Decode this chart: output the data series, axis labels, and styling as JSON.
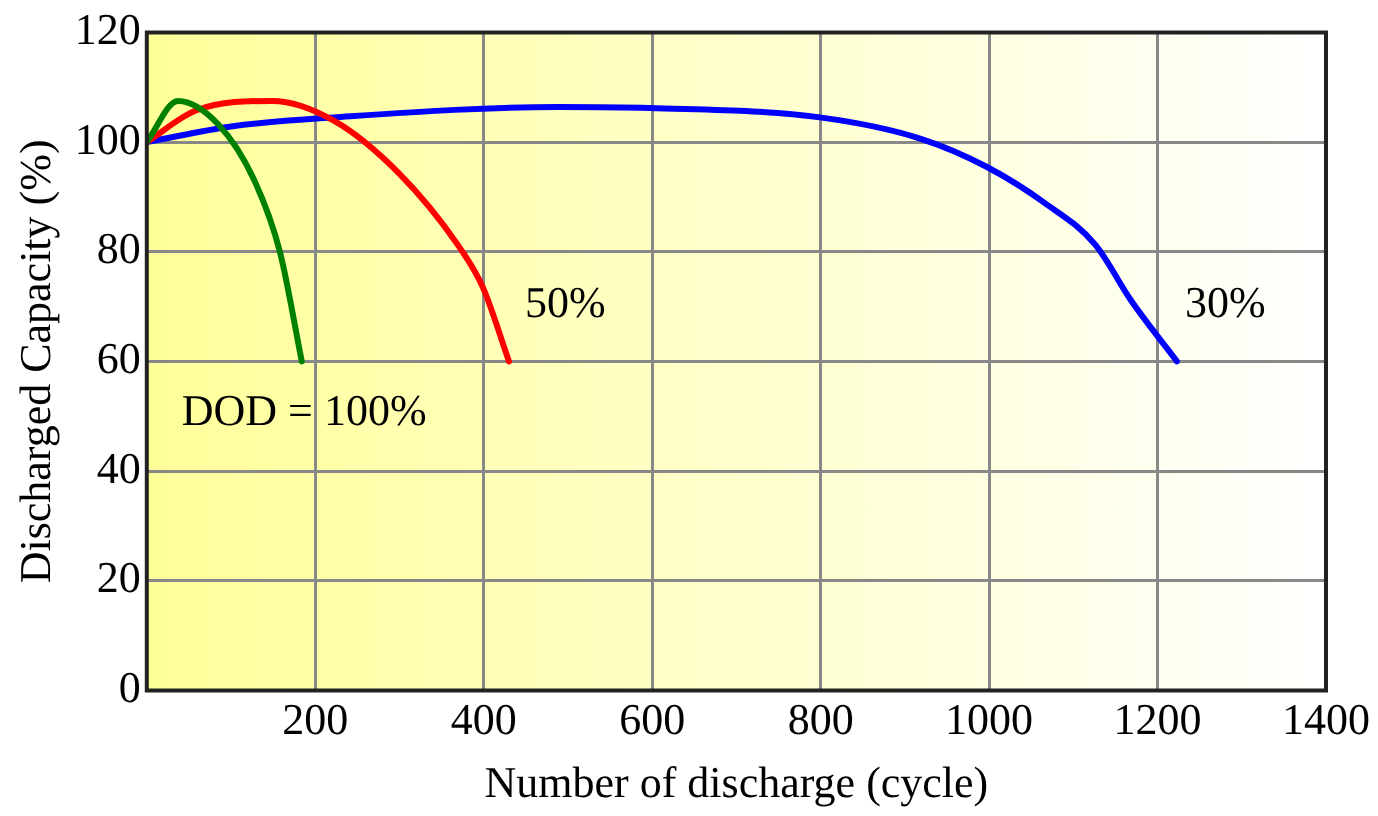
{
  "chart_data": {
    "type": "line",
    "xlabel": "Number of discharge (cycle)",
    "ylabel": "Discharged Capacity (%)",
    "xlim": [
      0,
      1400
    ],
    "xticks": [
      {
        "value": 0,
        "label": null
      },
      200,
      400,
      600,
      800,
      1000,
      1200,
      1400
    ],
    "ylim": [
      0,
      120
    ],
    "yticks": [
      0,
      20,
      40,
      60,
      80,
      100,
      120
    ],
    "grid": true,
    "legend": false,
    "marker": "none",
    "line_style": "solid",
    "series": [
      {
        "name": "DOD = 100%",
        "color": "#008000",
        "x": [
          0,
          37,
          85,
          128,
          158,
          184
        ],
        "values": [
          100,
          107.5,
          103.2,
          92.9,
          80,
          60
        ]
      },
      {
        "name": "50%",
        "color": "#ff0000",
        "x": [
          0,
          59,
          149,
          222,
          300,
          369,
          399,
          430
        ],
        "values": [
          100,
          105.8,
          107.5,
          103.9,
          94.2,
          81.3,
          73.5,
          60
        ]
      },
      {
        "name": "30%",
        "color": "#0000ff",
        "x": [
          0,
          102,
          222,
          489,
          597,
          799,
          919,
          997,
          1065,
          1126,
          1169,
          1223
        ],
        "values": [
          100,
          102.9,
          104.5,
          106.4,
          106.2,
          104.5,
          100.6,
          95.5,
          89,
          81.3,
          71,
          60
        ]
      }
    ]
  }
}
